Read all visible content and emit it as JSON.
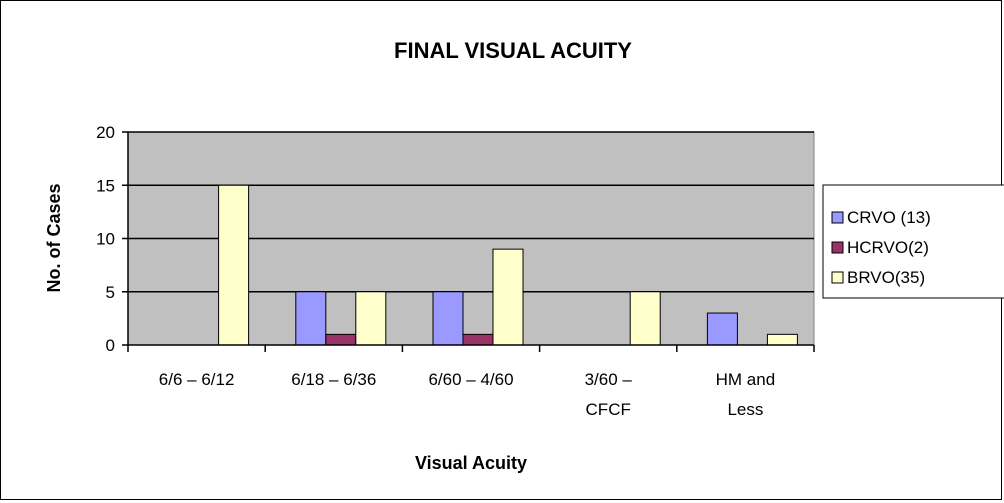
{
  "chart_data": {
    "type": "bar",
    "title": "FINAL VISUAL ACUITY",
    "xlabel": "Visual Acuity",
    "ylabel": "No. of Cases",
    "categories": [
      [
        "6/6 – 6/12"
      ],
      [
        "6/18 – 6/36"
      ],
      [
        "6/60 – 4/60"
      ],
      [
        "3/60 –",
        "CFCF"
      ],
      [
        "HM and",
        "Less"
      ]
    ],
    "series": [
      {
        "name": "CRVO (13)",
        "color": "#9999ff",
        "values": [
          0,
          5,
          5,
          0,
          3
        ]
      },
      {
        "name": "HCRVO(2)",
        "color": "#993366",
        "values": [
          0,
          1,
          1,
          0,
          0
        ]
      },
      {
        "name": "BRVO(35)",
        "color": "#ffffcc",
        "values": [
          15,
          5,
          9,
          5,
          1
        ]
      }
    ],
    "ylim": [
      0,
      20
    ],
    "yticks": [
      0,
      5,
      10,
      15,
      20
    ],
    "grid": true,
    "plot_background": "#c0c0c0",
    "legend_position": "right"
  }
}
